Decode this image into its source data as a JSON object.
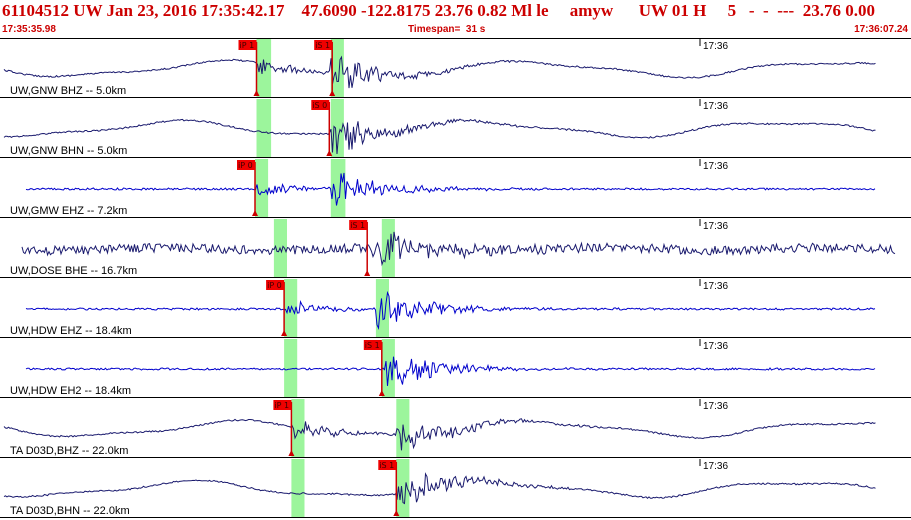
{
  "header": {
    "title": "61104512 UW Jan 23, 2016 17:35:42.17    47.6090 -122.8175 23.76 0.82 Ml le     amyw      UW 01 H     5   -  -  ---  23.76 0.00",
    "start_time": "17:35:35.98",
    "timespan": "Timespan=  31 s",
    "end_time": "17:36:07.24"
  },
  "colors": {
    "title": "#cc0000",
    "trace_dark": "#1a1a6e",
    "trace_blue": "#0000cc",
    "pick_window": "#9cf59c",
    "pick_label_bg": "#ee0000",
    "pick_line": "#cc0000"
  },
  "chart_data": {
    "type": "line",
    "x_range_s": [
      0,
      31.26
    ],
    "time_tick_label": "17:36",
    "time_tick_s": 24.02,
    "panels": [
      {
        "label": "UW,GNW BHZ -- 5.0km",
        "style": "dark",
        "kind": "long",
        "picks": [
          {
            "label": "iP 1",
            "t": 8.8
          },
          {
            "label": "iS 1",
            "t": 11.4
          }
        ],
        "windows": [
          [
            8.8,
            9.3
          ],
          [
            11.35,
            11.8
          ]
        ]
      },
      {
        "label": "UW,GNW BHN -- 5.0km",
        "style": "dark",
        "kind": "long",
        "picks": [
          {
            "label": "iS 0",
            "t": 11.3
          }
        ],
        "windows": [
          [
            8.8,
            9.3
          ],
          [
            11.35,
            11.8
          ]
        ]
      },
      {
        "label": "UW,GMW EHZ -- 7.2km",
        "style": "blue",
        "kind": "short",
        "picks": [
          {
            "label": "iP 0",
            "t": 8.75
          }
        ],
        "windows": [
          [
            8.75,
            9.2
          ],
          [
            11.35,
            11.85
          ]
        ]
      },
      {
        "label": "UW,DOSE BHE -- 16.7km",
        "style": "dark",
        "kind": "noisy",
        "picks": [
          {
            "label": "iS 1",
            "t": 12.6
          }
        ],
        "windows": [
          [
            9.4,
            9.85
          ],
          [
            13.1,
            13.55
          ]
        ]
      },
      {
        "label": "UW,HDW EHZ -- 18.4km",
        "style": "blue",
        "kind": "short",
        "picks": [
          {
            "label": "iP 0",
            "t": 9.75
          }
        ],
        "windows": [
          [
            9.75,
            10.2
          ],
          [
            12.9,
            13.35
          ]
        ]
      },
      {
        "label": "UW,HDW EH2 -- 18.4km",
        "style": "blue",
        "kind": "short",
        "picks": [
          {
            "label": "iS 1",
            "t": 13.1
          }
        ],
        "windows": [
          [
            9.75,
            10.2
          ],
          [
            13.1,
            13.55
          ]
        ]
      },
      {
        "label": "TA D03D,BHZ -- 22.0km",
        "style": "dark",
        "kind": "long",
        "picks": [
          {
            "label": "iP 1",
            "t": 10.0
          }
        ],
        "windows": [
          [
            10.0,
            10.45
          ],
          [
            13.6,
            14.05
          ]
        ]
      },
      {
        "label": "TA D03D,BHN -- 22.0km",
        "style": "dark",
        "kind": "long",
        "picks": [
          {
            "label": "iS 1",
            "t": 13.6
          }
        ],
        "windows": [
          [
            10.0,
            10.45
          ],
          [
            13.6,
            14.05
          ]
        ]
      }
    ]
  }
}
